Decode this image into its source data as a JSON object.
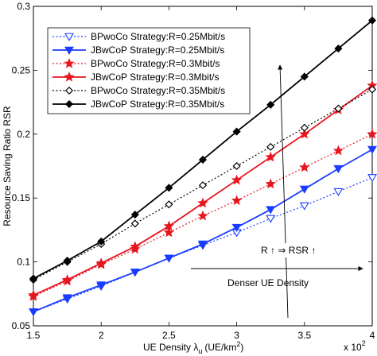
{
  "chart_data": {
    "type": "line",
    "xlabel": "UE Density λ_u (UE/km²)",
    "xlabel_parts": {
      "main": "UE Density λ",
      "sub": "u",
      "units": "(UE/km",
      "sup": "2",
      "close": ")"
    },
    "ylabel": "Resource Saving Ratio RSR",
    "x_exponent_label": {
      "base": "x 10",
      "exp": "2"
    },
    "xlim": [
      1.5,
      4
    ],
    "ylim": [
      0.05,
      0.3
    ],
    "x_ticks": [
      1.5,
      2,
      2.5,
      3,
      3.5,
      4
    ],
    "x_tick_labels": [
      "1.5",
      "2",
      "2.5",
      "3",
      "3.5",
      "4"
    ],
    "y_ticks": [
      0.05,
      0.1,
      0.15,
      0.2,
      0.25,
      0.3
    ],
    "y_tick_labels": [
      "0.05",
      "0.1",
      "0.15",
      "0.2",
      "0.25",
      "0.3"
    ],
    "grid": false,
    "legend_position": "top-left",
    "x": [
      1.5,
      1.75,
      2,
      2.25,
      2.5,
      2.75,
      3,
      3.25,
      3.5,
      3.75,
      4
    ],
    "series": [
      {
        "name": "BPwoCo Strategy:R=0.25Mbit/s",
        "color": "#1a3cff",
        "dash": "dotted",
        "marker": "triangle-down-open",
        "values": [
          0.061,
          0.071,
          0.081,
          0.092,
          0.103,
          0.113,
          0.123,
          0.134,
          0.144,
          0.155,
          0.166
        ]
      },
      {
        "name": "JBwCoP Strategy:R=0.25Mbit/s",
        "color": "#1a3cff",
        "dash": "solid",
        "marker": "triangle-down-filled",
        "values": [
          0.061,
          0.072,
          0.082,
          0.092,
          0.103,
          0.114,
          0.127,
          0.141,
          0.157,
          0.173,
          0.188
        ]
      },
      {
        "name": "BPwoCo Strategy:R=0.3Mbit/s",
        "color": "#e8141e",
        "dash": "dotted",
        "marker": "star-filled",
        "values": [
          0.073,
          0.085,
          0.098,
          0.11,
          0.123,
          0.136,
          0.148,
          0.161,
          0.174,
          0.187,
          0.2
        ]
      },
      {
        "name": "JBwCoP Strategy:R=0.3Mbit/s",
        "color": "#e8141e",
        "dash": "solid",
        "marker": "star-filled",
        "values": [
          0.074,
          0.086,
          0.099,
          0.112,
          0.128,
          0.146,
          0.164,
          0.182,
          0.2,
          0.219,
          0.238
        ]
      },
      {
        "name": "BPwoCo Strategy:R=0.35Mbit/s",
        "color": "#000000",
        "dash": "dotted",
        "marker": "diamond-open",
        "values": [
          0.086,
          0.1,
          0.114,
          0.13,
          0.145,
          0.16,
          0.175,
          0.19,
          0.205,
          0.22,
          0.235
        ]
      },
      {
        "name": "JBwCoP Strategy:R=0.35Mbit/s",
        "color": "#000000",
        "dash": "solid",
        "marker": "diamond-filled",
        "values": [
          0.087,
          0.101,
          0.116,
          0.137,
          0.158,
          0.18,
          0.202,
          0.223,
          0.245,
          0.267,
          0.289
        ]
      }
    ],
    "annotations": [
      {
        "id": "r-arrow",
        "text": "R ↑ ⇒ RSR ↑"
      },
      {
        "id": "density-arrow",
        "text": "Denser UE Density"
      }
    ]
  }
}
